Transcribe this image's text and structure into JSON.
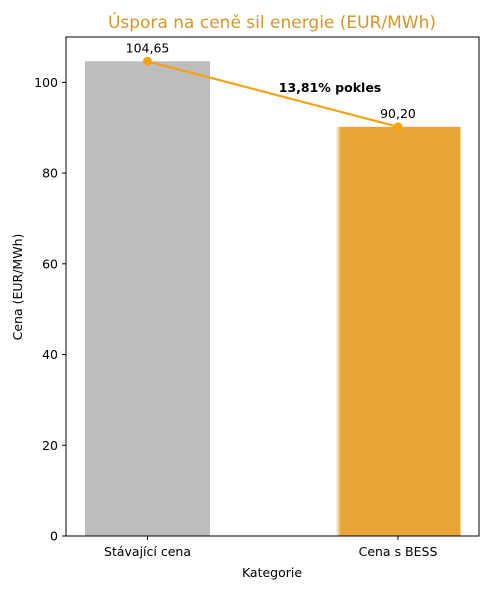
{
  "chart_data": {
    "type": "bar",
    "title": "Úspora na ceně sil energie (EUR/MWh)",
    "xlabel": "Kategorie",
    "ylabel": "Cena (EUR/MWh)",
    "categories": [
      "Stávající cena",
      "Cena s BESS"
    ],
    "values": [
      104.65,
      90.2
    ],
    "value_labels": [
      "104,65",
      "90,20"
    ],
    "ylim": [
      0,
      110
    ],
    "yticks": [
      0,
      20,
      40,
      60,
      80,
      100
    ],
    "ytick_labels": [
      "0",
      "20",
      "40",
      "60",
      "80",
      "100"
    ],
    "grid": false,
    "colors": {
      "title": "#D4962C",
      "bar_current": "#BDBDBD",
      "bar_bess": "#E6A534",
      "line": "#F5A316",
      "axis": "#000000"
    },
    "annotation": {
      "text": "13,81% pokles"
    }
  }
}
